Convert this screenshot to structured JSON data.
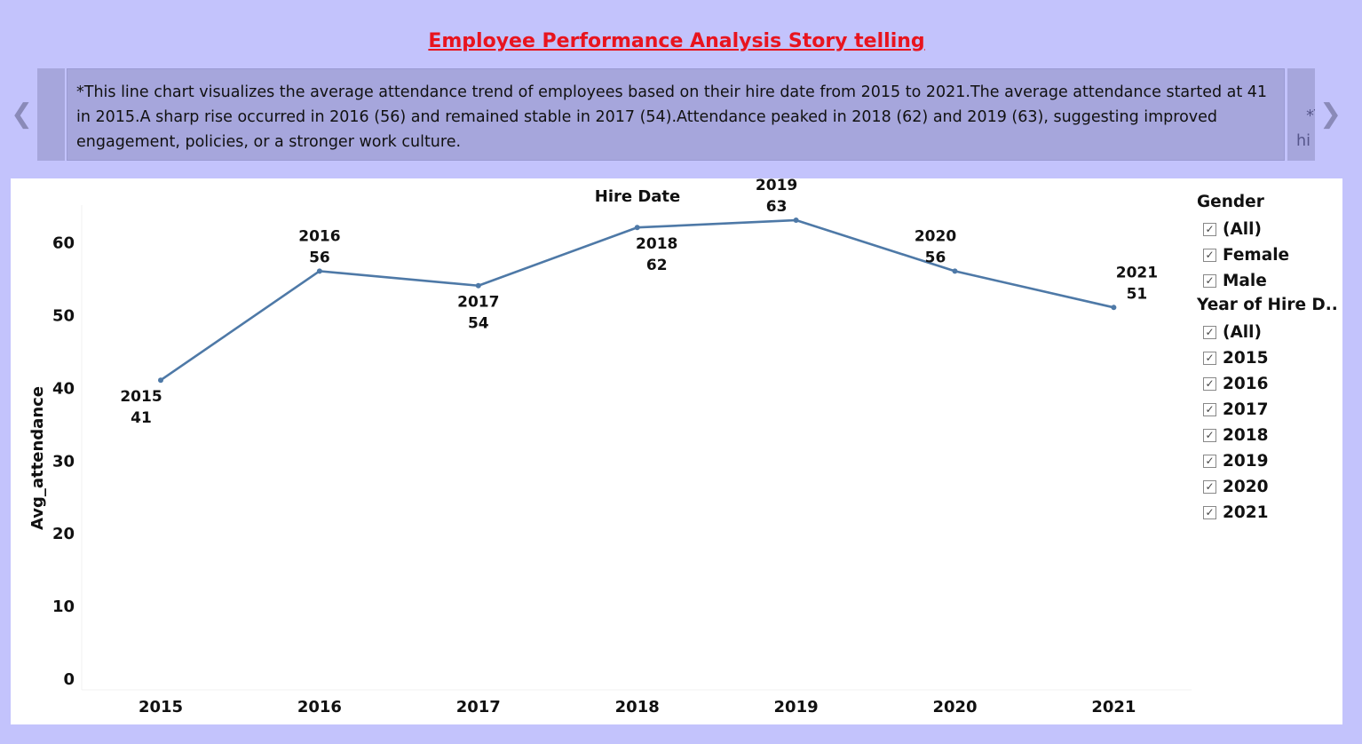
{
  "story": {
    "title": "Employee Performance Analysis Story telling",
    "caption": "*This line chart visualizes the average attendance trend of employees based on their hire date from 2015 to 2021.The average attendance started at 41 in 2015.A sharp rise occurred in 2016 (56) and remained stable in 2017 (54).Attendance peaked in 2018 (62) and 2019 (63), suggesting improved engagement, policies, or a stronger work culture.",
    "next_caption_preview": "*T\nhi\nco",
    "prev_icon": "chevron-left-icon",
    "next_icon": "chevron-right-icon"
  },
  "chart_data": {
    "type": "line",
    "title": "Hire Date",
    "ylabel": "Avg_attendance",
    "xlabel": "",
    "categories": [
      "2015",
      "2016",
      "2017",
      "2018",
      "2019",
      "2020",
      "2021"
    ],
    "values": [
      41,
      56,
      54,
      62,
      63,
      56,
      51
    ],
    "ylim": [
      0,
      66
    ],
    "yticks": [
      0,
      10,
      20,
      30,
      40,
      50,
      60
    ],
    "label_position": [
      "below",
      "above",
      "below",
      "below",
      "above",
      "above",
      "above"
    ],
    "line_color": "#4e79a7",
    "grid": false
  },
  "filters": [
    {
      "title": "Gender",
      "items": [
        "(All)",
        "Female",
        "Male"
      ]
    },
    {
      "title": "Year of Hire D..",
      "items": [
        "(All)",
        "2015",
        "2016",
        "2017",
        "2018",
        "2019",
        "2020",
        "2021"
      ]
    }
  ],
  "colors": {
    "background": "#c3c3fc",
    "caption_bg": "#a6a6dc",
    "title": "#e8141e"
  }
}
